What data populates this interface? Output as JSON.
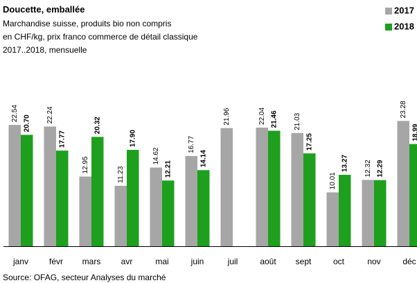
{
  "chart_data": {
    "type": "bar",
    "title": "Doucette, emballée",
    "subtitle": [
      "Marchandise suisse, produits bio non compris",
      "en CHF/kg,  prix franco commerce de détail classique",
      "2017..2018, mensuelle"
    ],
    "source": "Source: OFAG, secteur Analyses du marché",
    "categories": [
      "janv",
      "févr",
      "mars",
      "avr",
      "mai",
      "juin",
      "juil",
      "août",
      "sept",
      "oct",
      "nov",
      "déc"
    ],
    "series": [
      {
        "name": "2017",
        "color": "#a6a6a6",
        "values": [
          22.54,
          22.24,
          12.95,
          11.23,
          14.62,
          16.77,
          21.96,
          22.04,
          21.03,
          10.01,
          12.32,
          23.28
        ]
      },
      {
        "name": "2018",
        "color": "#1ea01e",
        "values": [
          20.7,
          17.77,
          20.32,
          17.9,
          12.21,
          14.14,
          null,
          21.46,
          17.25,
          13.27,
          12.29,
          18.99
        ],
        "value_labels": [
          "20.70",
          "17.77",
          "20.32",
          "17.90",
          "12.21",
          "14.14",
          null,
          "21.46",
          "17.25",
          "13.27",
          "12.29",
          "18.99"
        ]
      }
    ],
    "ylim": [
      0,
      30
    ],
    "legend": "top-right"
  }
}
